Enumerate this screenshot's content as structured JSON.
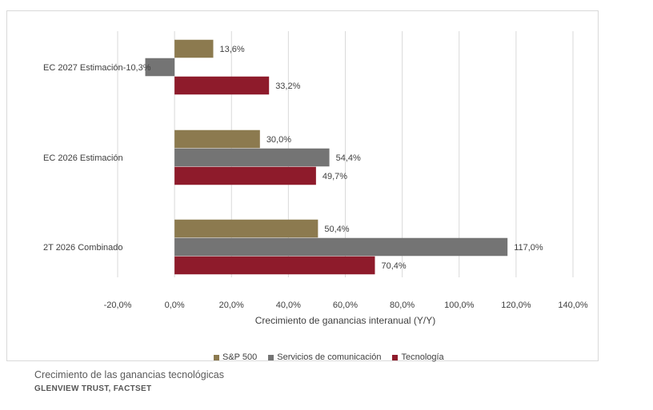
{
  "chart_data": {
    "type": "bar",
    "orientation": "horizontal",
    "categories": [
      "EC 2027 Estimación",
      "EC 2026 Estimación",
      "2T 2026 Combinado"
    ],
    "series": [
      {
        "name": "S&P 500",
        "color": "#8c7a4f",
        "values": [
          13.6,
          30.0,
          50.4
        ],
        "labels": [
          "13,6%",
          "30,0%",
          "50,4%"
        ]
      },
      {
        "name": "Servicios de comunicación",
        "color": "#747474",
        "values": [
          -10.3,
          54.4,
          117.0
        ],
        "labels": [
          "-10,3%",
          "54,4%",
          "117,0%"
        ]
      },
      {
        "name": "Tecnología",
        "color": "#8e1b2b",
        "values": [
          33.2,
          49.7,
          70.4
        ],
        "labels": [
          "33,2%",
          "49,7%",
          "70,4%"
        ]
      }
    ],
    "xlim": [
      -20,
      140
    ],
    "xticks": [
      -20,
      0,
      20,
      40,
      60,
      80,
      100,
      120,
      140
    ],
    "xtick_labels": [
      "-20,0%",
      "0,0%",
      "20,0%",
      "40,0%",
      "60,0%",
      "80,0%",
      "100,0%",
      "120,0%",
      "140,0%"
    ],
    "xlabel": "Crecimiento de ganancias interanual (Y/Y)",
    "grid": true,
    "legend_position": "bottom"
  },
  "caption": "Crecimiento de las ganancias tecnológicas",
  "source": "GLENVIEW TRUST, FACTSET"
}
